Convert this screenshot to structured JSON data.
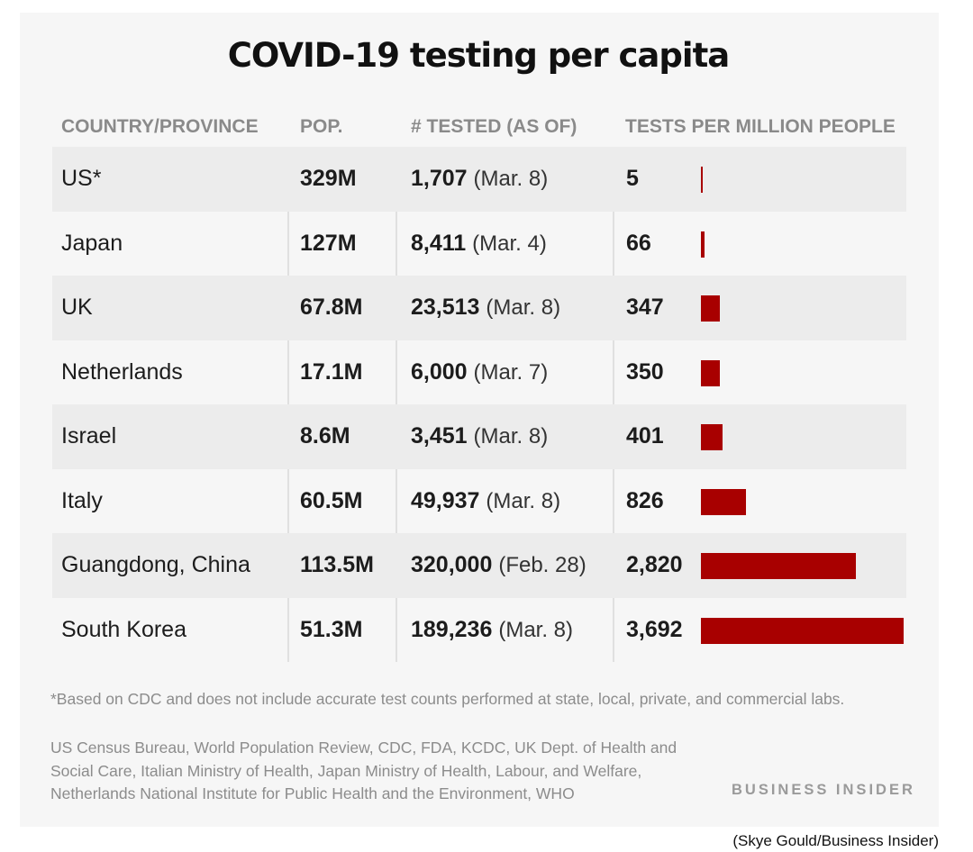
{
  "chart_data": {
    "type": "table",
    "title": "COVID-19 testing per capita",
    "columns": [
      "COUNTRY/PROVINCE",
      "POP.",
      "# TESTED (AS OF)",
      "TESTS PER MILLION PEOPLE"
    ],
    "rows": [
      {
        "country": "US*",
        "pop": "329M",
        "tested": "1,707",
        "as_of": "(Mar. 8)",
        "per_million_label": "5",
        "per_million": 5
      },
      {
        "country": "Japan",
        "pop": "127M",
        "tested": "8,411",
        "as_of": "(Mar. 4)",
        "per_million_label": "66",
        "per_million": 66
      },
      {
        "country": "UK",
        "pop": "67.8M",
        "tested": "23,513",
        "as_of": "(Mar. 8)",
        "per_million_label": "347",
        "per_million": 347
      },
      {
        "country": "Netherlands",
        "pop": "17.1M",
        "tested": "6,000",
        "as_of": "(Mar. 7)",
        "per_million_label": "350",
        "per_million": 350
      },
      {
        "country": "Israel",
        "pop": "8.6M",
        "tested": "3,451",
        "as_of": "(Mar. 8)",
        "per_million_label": "401",
        "per_million": 401
      },
      {
        "country": "Italy",
        "pop": "60.5M",
        "tested": "49,937",
        "as_of": "(Mar. 8)",
        "per_million_label": "826",
        "per_million": 826
      },
      {
        "country": "Guangdong, China",
        "pop": "113.5M",
        "tested": "320,000",
        "as_of": "(Feb. 28)",
        "per_million_label": "2,820",
        "per_million": 2820
      },
      {
        "country": "South Korea",
        "pop": "51.3M",
        "tested": "189,236",
        "as_of": "(Mar. 8)",
        "per_million_label": "3,692",
        "per_million": 3692
      }
    ],
    "bar_max": 3692,
    "bar_color": "#a80000"
  },
  "footnote": "*Based on CDC and does not include accurate test counts performed at state, local, private, and commercial labs.",
  "sources": "US Census Bureau, World Population Review, CDC, FDA, KCDC, UK Dept. of Health and Social Care, Italian Ministry of Health, Japan Ministry of Health, Labour, and Welfare, Netherlands National Institute for Public Health and the Environment, WHO",
  "brand": "BUSINESS INSIDER",
  "credit": "(Skye Gould/Business Insider)"
}
